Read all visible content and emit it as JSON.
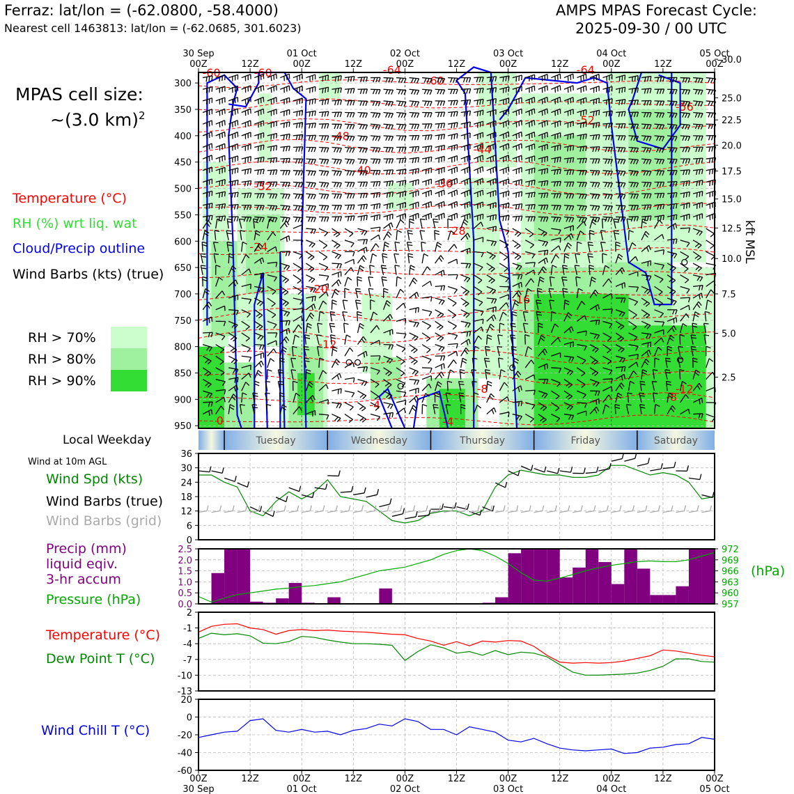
{
  "header": {
    "location": "Ferraz: lat/lon = (-62.0800, -58.4000)",
    "nearest_cell": "Nearest cell 1463813: lat/lon = (-62.0685, 301.6023)",
    "title_line1": "AMPS MPAS Forecast Cycle:",
    "title_line2": "2025-09-30 / 00 UTC"
  },
  "cell_size": {
    "line1": "MPAS cell size:",
    "line2": "~(3.0 km)",
    "exponent": "2"
  },
  "profile_legend": {
    "temperature": "Temperature (°C)",
    "rh": "RH (%) wrt liq. wat",
    "cloud": "Cloud/Precip outline",
    "wind": "Wind Barbs (kts) (true)"
  },
  "rh_legend": [
    {
      "label": "RH > 70%",
      "color": "#ccfdcc"
    },
    {
      "label": "RH > 80%",
      "color": "#9ff09f"
    },
    {
      "label": "RH > 90%",
      "color": "#33dd33"
    }
  ],
  "colors": {
    "temperature": "#ff0000",
    "rh_label": "#33dd33",
    "cloud": "#0000ee",
    "wind_speed": "#008800",
    "grid_barbs": "#aaaaaa",
    "precip": "#800080",
    "pressure": "#00aa00",
    "dewpoint": "#008800",
    "windchill": "#0000ee"
  },
  "time_axis": {
    "top_ticks": [
      {
        "l1": "30 Sep",
        "l2": "00Z"
      },
      {
        "l1": "",
        "l2": "12Z"
      },
      {
        "l1": "01 Oct",
        "l2": "00Z"
      },
      {
        "l1": "",
        "l2": "12Z"
      },
      {
        "l1": "02 Oct",
        "l2": "00Z"
      },
      {
        "l1": "",
        "l2": "12Z"
      },
      {
        "l1": "03 Oct",
        "l2": "00Z"
      },
      {
        "l1": "",
        "l2": "12Z"
      },
      {
        "l1": "04 Oct",
        "l2": "00Z"
      },
      {
        "l1": "",
        "l2": "12Z"
      },
      {
        "l1": "05 Oct",
        "l2": "00Z"
      }
    ],
    "bottom_ticks": [
      {
        "l1": "00Z",
        "l2": "30 Sep"
      },
      {
        "l1": "12Z",
        "l2": ""
      },
      {
        "l1": "00Z",
        "l2": "01 Oct"
      },
      {
        "l1": "12Z",
        "l2": ""
      },
      {
        "l1": "00Z",
        "l2": "02 Oct"
      },
      {
        "l1": "12Z",
        "l2": ""
      },
      {
        "l1": "00Z",
        "l2": "03 Oct"
      },
      {
        "l1": "12Z",
        "l2": ""
      },
      {
        "l1": "00Z",
        "l2": "04 Oct"
      },
      {
        "l1": "12Z",
        "l2": ""
      },
      {
        "l1": "00Z",
        "l2": "05 Oct"
      }
    ]
  },
  "weekday": {
    "label": "Local Weekday",
    "days": [
      "Tuesday",
      "Wednesday",
      "Thursday",
      "Friday",
      "Saturday"
    ]
  },
  "surface": {
    "wind_height": "Wind at 10m AGL",
    "wind_speed_label": "Wind Spd (kts)",
    "barbs_true_label": "Wind Barbs (true)",
    "barbs_grid_label": "Wind Barbs (grid)",
    "precip_line1": "Precip (mm)",
    "precip_line2": "liquid eqiv.",
    "precip_line3": "3-hr accum",
    "pressure_label": "Pressure (hPa)",
    "pressure_unit": "(hPa)",
    "temp_label": "Temperature (°C)",
    "dew_label": "Dew Point T (°C)",
    "windchill_label": "Wind Chill T (°C)"
  },
  "chart_data": [
    {
      "type": "heatmap",
      "name": "vertical profile",
      "y_left_label": "",
      "y_right_label": "kft MSL",
      "pressure_ticks": [
        300,
        350,
        400,
        450,
        500,
        550,
        600,
        650,
        700,
        750,
        800,
        850,
        900,
        950
      ],
      "height_ticks": [
        "30.0",
        "25.0",
        "22.5",
        "20.0",
        "17.5",
        "15.0",
        "12.5",
        "10.0",
        "7.5",
        "5.0",
        "2.5"
      ],
      "height_tick_pressure": [
        255,
        328,
        370,
        418,
        467,
        520,
        575,
        633,
        700,
        775,
        858
      ],
      "temperature_labels": [
        {
          "t": 3,
          "p": 280,
          "v": "-60"
        },
        {
          "t": 15,
          "p": 280,
          "v": "-60"
        },
        {
          "t": 45,
          "p": 275,
          "v": "-64"
        },
        {
          "t": 90,
          "p": 275,
          "v": "-64"
        },
        {
          "t": 55,
          "p": 295,
          "v": "-60"
        },
        {
          "t": 113,
          "p": 345,
          "v": "-56"
        },
        {
          "t": 90,
          "p": 370,
          "v": "-52"
        },
        {
          "t": 33,
          "p": 400,
          "v": "-48"
        },
        {
          "t": 66,
          "p": 425,
          "v": "-44"
        },
        {
          "t": 38,
          "p": 465,
          "v": "-40"
        },
        {
          "t": 57,
          "p": 490,
          "v": "-36"
        },
        {
          "t": 15,
          "p": 495,
          "v": "-32"
        },
        {
          "t": 60,
          "p": 580,
          "v": "-28"
        },
        {
          "t": 14,
          "p": 610,
          "v": "-24"
        },
        {
          "t": 28,
          "p": 690,
          "v": "-20"
        },
        {
          "t": 75,
          "p": 710,
          "v": "-16"
        },
        {
          "t": 30,
          "p": 795,
          "v": "-12"
        },
        {
          "t": 113,
          "p": 880,
          "v": "-12"
        },
        {
          "t": 66,
          "p": 880,
          "v": "-8"
        },
        {
          "t": 110,
          "p": 895,
          "v": "-8"
        },
        {
          "t": 41,
          "p": 910,
          "v": "-4"
        },
        {
          "t": 58,
          "p": 942,
          "v": "-4"
        },
        {
          "t": 5,
          "p": 940,
          "v": "0"
        }
      ]
    },
    {
      "type": "line",
      "name": "surface wind",
      "ylim": [
        0,
        36
      ],
      "yticks": [
        0,
        6,
        12,
        18,
        24,
        30,
        36
      ],
      "x": [
        0,
        3,
        6,
        9,
        12,
        15,
        18,
        21,
        24,
        27,
        30,
        33,
        36,
        39,
        42,
        45,
        48,
        51,
        54,
        57,
        60,
        63,
        66,
        69,
        72,
        75,
        78,
        81,
        84,
        87,
        90,
        93,
        96,
        99,
        102,
        105,
        108,
        111,
        114,
        117,
        120
      ],
      "series": [
        {
          "name": "Wind Spd (kts)",
          "values": [
            27,
            27,
            24,
            22,
            12,
            10,
            16,
            20,
            17,
            20,
            25,
            18,
            17,
            16,
            12,
            8,
            7,
            8,
            11,
            12,
            12,
            10,
            12,
            22,
            27,
            29,
            28,
            27,
            27,
            26,
            26,
            27,
            31,
            31,
            29,
            27,
            28,
            27,
            24,
            17,
            18
          ]
        }
      ]
    },
    {
      "type": "bar",
      "name": "precipitation",
      "ylim": [
        0,
        2.5
      ],
      "yticks": [
        0,
        0.5,
        1.0,
        1.5,
        2.0,
        2.5
      ],
      "x_start": [
        0,
        3,
        6,
        9,
        12,
        15,
        18,
        21,
        24,
        27,
        30,
        33,
        36,
        39,
        42,
        45,
        48,
        51,
        54,
        57,
        60,
        63,
        66,
        69,
        72,
        75,
        78,
        81,
        84,
        87,
        90,
        93,
        96,
        99,
        102,
        105,
        108,
        111,
        114,
        117
      ],
      "values": [
        0,
        1.4,
        2.5,
        2.5,
        0.1,
        0.05,
        0.25,
        0.95,
        0.05,
        0,
        0.3,
        0,
        0,
        0,
        0.7,
        0,
        0,
        0,
        0,
        0,
        0,
        0,
        0.05,
        0.3,
        2.3,
        2.5,
        2.5,
        2.5,
        1.2,
        1.65,
        2.5,
        1.9,
        0.9,
        2.5,
        1.6,
        0.4,
        0.4,
        0.8,
        2.5,
        2.5
      ]
    },
    {
      "type": "line",
      "name": "pressure",
      "ylim": [
        957,
        972
      ],
      "yticks": [
        957,
        960,
        963,
        966,
        969,
        972
      ],
      "x": [
        0,
        3,
        6,
        9,
        12,
        15,
        18,
        21,
        24,
        27,
        30,
        33,
        36,
        39,
        42,
        45,
        48,
        51,
        54,
        57,
        60,
        63,
        66,
        69,
        72,
        75,
        78,
        81,
        84,
        87,
        90,
        93,
        96,
        99,
        102,
        105,
        108,
        111,
        114,
        117,
        120
      ],
      "series": [
        {
          "name": "Pressure (hPa)",
          "values": [
            959,
            957.5,
            958.5,
            959.5,
            960,
            960.5,
            961,
            961.3,
            961.7,
            962,
            962.5,
            963,
            964,
            965,
            966,
            966.5,
            967,
            968,
            969,
            970.5,
            971.5,
            972,
            971.5,
            970,
            968,
            965.5,
            963.5,
            963.2,
            964,
            965,
            966,
            966.8,
            967.5,
            968,
            968.5,
            968.7,
            968.5,
            968.5,
            969,
            970,
            971
          ]
        }
      ]
    },
    {
      "type": "line",
      "name": "temperature and dew point",
      "ylim": [
        -13,
        2
      ],
      "yticks": [
        -13,
        -10,
        -7,
        -4,
        -1,
        2
      ],
      "x": [
        0,
        3,
        6,
        9,
        12,
        15,
        18,
        21,
        24,
        27,
        30,
        33,
        36,
        39,
        42,
        45,
        48,
        51,
        54,
        57,
        60,
        63,
        66,
        69,
        72,
        75,
        78,
        81,
        84,
        87,
        90,
        93,
        96,
        99,
        102,
        105,
        108,
        111,
        114,
        117,
        120
      ],
      "series": [
        {
          "name": "Temperature (°C)",
          "values": [
            -1.8,
            -0.7,
            -0.3,
            -0.2,
            -1.0,
            -1.3,
            -2.2,
            -1.5,
            -1.3,
            -1.5,
            -1.4,
            -1.6,
            -1.7,
            -1.8,
            -2.0,
            -2.2,
            -2.3,
            -3.0,
            -3.5,
            -4.3,
            -3.6,
            -4.4,
            -3.5,
            -3.7,
            -3.4,
            -3.5,
            -4.5,
            -6.2,
            -7.5,
            -7.7,
            -7.6,
            -7.7,
            -7.6,
            -7.3,
            -6.8,
            -6.3,
            -5.2,
            -5.4,
            -5.8,
            -6.2,
            -6.5
          ]
        },
        {
          "name": "Dew Point T (°C)",
          "values": [
            -3.0,
            -2.0,
            -2.3,
            -2.1,
            -2.5,
            -3.9,
            -4.0,
            -3.6,
            -2.6,
            -2.8,
            -3.3,
            -3.7,
            -4.0,
            -4.0,
            -4.1,
            -4.3,
            -7.2,
            -5.5,
            -4.2,
            -4.8,
            -5.8,
            -5.5,
            -6.2,
            -5.3,
            -6.1,
            -5.6,
            -5.8,
            -6.5,
            -8.0,
            -9.4,
            -10.0,
            -10.0,
            -9.9,
            -9.8,
            -9.6,
            -9.1,
            -8.3,
            -6.9,
            -6.9,
            -7.4,
            -7.5
          ]
        }
      ]
    },
    {
      "type": "line",
      "name": "wind chill",
      "ylim": [
        -60,
        20
      ],
      "yticks": [
        -60,
        -40,
        -20,
        0,
        20
      ],
      "x": [
        0,
        3,
        6,
        9,
        12,
        15,
        18,
        21,
        24,
        27,
        30,
        33,
        36,
        39,
        42,
        45,
        48,
        51,
        54,
        57,
        60,
        63,
        66,
        69,
        72,
        75,
        78,
        81,
        84,
        87,
        90,
        93,
        96,
        99,
        102,
        105,
        108,
        111,
        114,
        117,
        120
      ],
      "series": [
        {
          "name": "Wind Chill T (°C)",
          "values": [
            -23,
            -20,
            -17,
            -16,
            -4,
            -2,
            -15,
            -17,
            -14,
            -17,
            -16,
            -20,
            -15,
            -13,
            -8,
            -10,
            -2,
            -5,
            -14,
            -14,
            -20,
            -11,
            -14,
            -17,
            -26,
            -28,
            -24,
            -30,
            -35,
            -37,
            -38,
            -37,
            -36,
            -41,
            -40,
            -35,
            -34,
            -31,
            -30,
            -23,
            -25
          ]
        }
      ]
    }
  ]
}
